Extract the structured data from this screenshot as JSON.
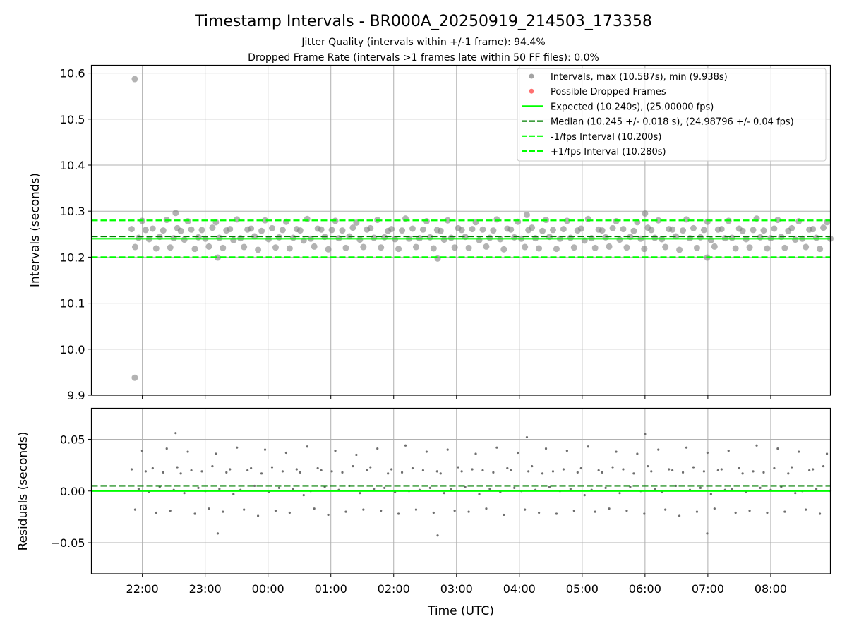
{
  "chart_data": [
    {
      "type": "scatter",
      "title": "Timestamp Intervals - BR000A_20250919_214503_173358",
      "subtitle_1": "Jitter Quality (intervals within +/-1 frame): 94.4%",
      "subtitle_2": "Dropped Frame Rate (intervals >1 frames late within 50 FF files): 0.0%",
      "xlabel": "",
      "ylabel": "Intervals (seconds)",
      "ylim": [
        9.9,
        10.617
      ],
      "xlim_hours": [
        21.19,
        32.95
      ],
      "yticks": [
        "9.9",
        "10.0",
        "10.1",
        "10.2",
        "10.3",
        "10.4",
        "10.5",
        "10.6"
      ],
      "ytick_values": [
        9.9,
        10.0,
        10.1,
        10.2,
        10.3,
        10.4,
        10.5,
        10.6
      ],
      "grid": true,
      "legend_position": "top-right",
      "legend": [
        {
          "label": "Intervals, max (10.587s), min (9.938s)",
          "kind": "dot",
          "color": "#999999"
        },
        {
          "label": "Possible Dropped Frames",
          "kind": "dot",
          "color": "#ff6060"
        },
        {
          "label": "Expected (10.240s), (25.00000 fps)",
          "kind": "solid",
          "color": "#00ff00"
        },
        {
          "label": "Median (10.245 +/- 0.018 s), (24.98796 +/- 0.04 fps)",
          "kind": "dashed",
          "color": "#007f00"
        },
        {
          "label": "-1/fps Interval (10.200s)",
          "kind": "dashed",
          "color": "#00ff00"
        },
        {
          "label": "+1/fps Interval (10.280s)",
          "kind": "dashed",
          "color": "#00ff00"
        }
      ],
      "reference_lines": {
        "expected": 10.24,
        "median": 10.245,
        "minus_1fps": 10.2,
        "plus_1fps": 10.28
      },
      "outliers": [
        {
          "time_hours": 21.88,
          "interval": 10.587
        },
        {
          "time_hours": 21.88,
          "interval": 9.938
        }
      ],
      "dropped_frames": []
    },
    {
      "type": "scatter",
      "xlabel": "Time (UTC)",
      "ylabel": "Residuals (seconds)",
      "ylim": [
        -0.08,
        0.08
      ],
      "yticks": [
        "−0.05",
        "0.00",
        "0.05"
      ],
      "ytick_values": [
        -0.05,
        0.0,
        0.05
      ],
      "xticks": [
        "22:00",
        "23:00",
        "00:00",
        "01:00",
        "02:00",
        "03:00",
        "04:00",
        "05:00",
        "06:00",
        "07:00",
        "08:00"
      ],
      "xtick_hours": [
        22,
        23,
        24,
        25,
        26,
        27,
        28,
        29,
        30,
        31,
        32
      ],
      "grid": true,
      "reference_lines": {
        "expected": 0.0,
        "median": 0.005
      },
      "start_hours": 21.83,
      "end_hours": 32.95,
      "residuals": [
        0.021,
        -0.018,
        0.002,
        0.039,
        0.019,
        -0.001,
        0.022,
        -0.021,
        0.004,
        0.018,
        0.041,
        -0.019,
        0.001,
        0.023,
        0.017,
        -0.002,
        0.038,
        0.02,
        -0.022,
        0.003,
        0.019,
        0.0,
        -0.017,
        0.024,
        0.036,
        0.002,
        -0.02,
        0.018,
        0.021,
        -0.003,
        0.042,
        0.001,
        -0.018,
        0.02,
        0.022,
        0.005,
        -0.024,
        0.017,
        0.04,
        -0.001,
        0.023,
        -0.019,
        0.003,
        0.019,
        0.037,
        -0.021,
        0.002,
        0.021,
        0.018,
        -0.004,
        0.043,
        0.0,
        -0.017,
        0.022,
        0.02,
        0.004,
        -0.023,
        0.019,
        0.039,
        0.001,
        0.018,
        -0.02,
        0.005,
        0.024,
        0.035,
        -0.002,
        -0.018,
        0.02,
        0.023,
        0.002,
        0.041,
        -0.019,
        0.003,
        0.017,
        0.021,
        -0.001,
        -0.022,
        0.018,
        0.044,
        0.0,
        0.022,
        -0.018,
        0.001,
        0.02,
        0.038,
        0.003,
        -0.021,
        0.019,
        0.017,
        -0.002,
        0.04,
        0.002,
        -0.019,
        0.023,
        0.019,
        0.004,
        -0.02,
        0.021,
        0.036,
        -0.003,
        0.02,
        -0.017,
        0.002,
        0.018,
        0.042,
        -0.001,
        -0.023,
        0.022,
        0.02,
        0.003,
        0.037,
        0.0,
        -0.018,
        0.019,
        0.024,
        0.001,
        -0.021,
        0.017,
        0.041,
        0.004,
        0.019,
        -0.022,
        0.0,
        0.021,
        0.039,
        0.002,
        -0.019,
        0.018,
        0.022,
        -0.004,
        0.043,
        0.001,
        -0.02,
        0.02,
        0.018,
        0.003,
        -0.017,
        0.023,
        0.038,
        -0.002,
        0.021,
        -0.019,
        0.004,
        0.017,
        0.036,
        0.0,
        -0.022,
        0.024,
        0.019,
        0.002,
        0.04,
        -0.001,
        -0.018,
        0.021,
        0.02,
        0.005,
        -0.024,
        0.018,
        0.042,
        0.001,
        0.023,
        -0.02,
        0.003,
        0.019,
        0.037,
        -0.003,
        -0.017,
        0.02,
        0.021,
        0.001,
        0.039,
        0.002,
        -0.021,
        0.022,
        0.017,
        -0.001,
        -0.019,
        0.019,
        0.044,
        0.003,
        0.018,
        -0.021,
        0.001,
        0.022,
        0.041,
        0.004,
        -0.02,
        0.017,
        0.023,
        -0.002,
        0.038,
        0.0,
        -0.018,
        0.02,
        0.021,
        0.002,
        -0.022,
        0.024,
        0.036,
        0.0
      ],
      "notable_points": [
        {
          "time_hours": 22.53,
          "residual": 0.056
        },
        {
          "time_hours": 23.2,
          "residual": -0.041
        },
        {
          "time_hours": 26.7,
          "residual": -0.043
        },
        {
          "time_hours": 28.12,
          "residual": 0.052
        },
        {
          "time_hours": 30.0,
          "residual": 0.055
        },
        {
          "time_hours": 30.99,
          "residual": -0.041
        }
      ]
    }
  ]
}
